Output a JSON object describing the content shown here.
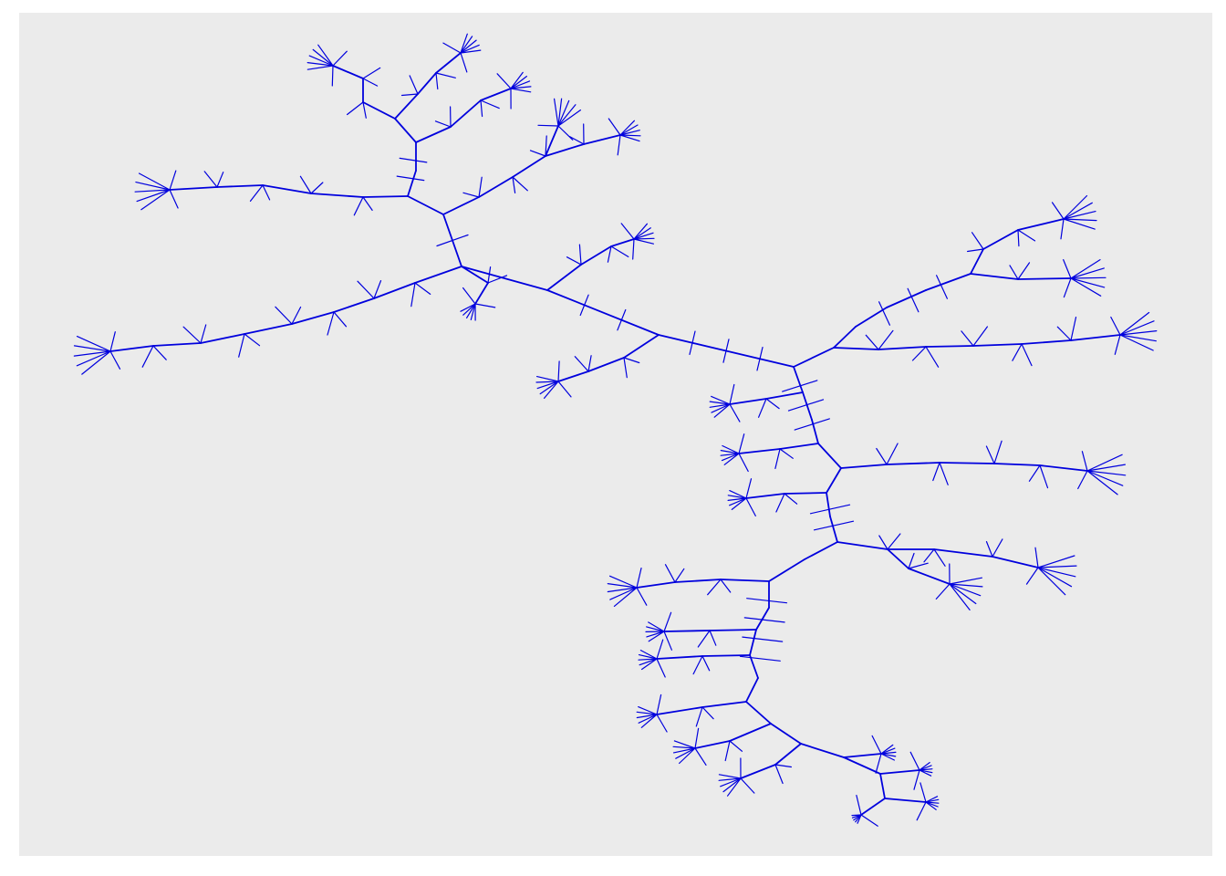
{
  "figure": {
    "kind": "branching-tree-diagram",
    "colors": {
      "page_background": "#ffffff",
      "panel_background": "#ebebeb",
      "stroke": "#0000dd"
    }
  }
}
